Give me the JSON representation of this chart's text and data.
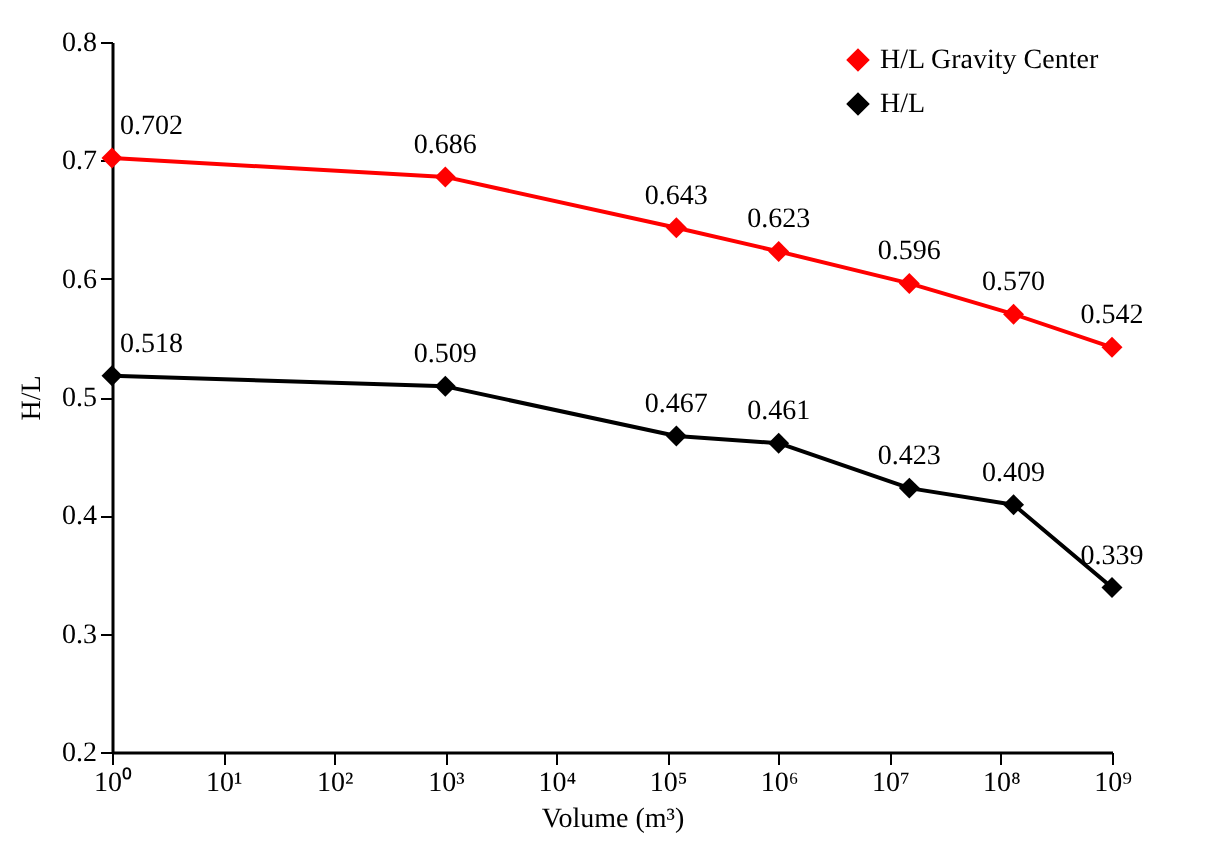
{
  "chart_data": {
    "type": "line",
    "xlabel": "Volume (m³)",
    "ylabel": "H/L",
    "log": "x",
    "x": [
      1,
      1000,
      120000,
      1000000,
      15000000,
      130000000,
      1000000000
    ],
    "xlim": [
      1,
      1000000000
    ],
    "xticks": [
      {
        "value": 1,
        "label": "10⁰"
      },
      {
        "value": 10,
        "label": "10¹"
      },
      {
        "value": 100,
        "label": "10²"
      },
      {
        "value": 1000,
        "label": "10³"
      },
      {
        "value": 10000,
        "label": "10⁴"
      },
      {
        "value": 100000,
        "label": "10⁵"
      },
      {
        "value": 1000000,
        "label": "10⁶"
      },
      {
        "value": 10000000,
        "label": "10⁷"
      },
      {
        "value": 100000000,
        "label": "10⁸"
      },
      {
        "value": 1000000000,
        "label": "10⁹"
      }
    ],
    "ylim": [
      0.2,
      0.8
    ],
    "yticks": [
      0.2,
      0.3,
      0.4,
      0.5,
      0.6,
      0.7,
      0.8
    ],
    "series": [
      {
        "name": "H/L  Gravity Center",
        "color": "#ff0000",
        "values": [
          0.702,
          0.686,
          0.643,
          0.623,
          0.596,
          0.57,
          0.542
        ],
        "value_labels": [
          "0.702",
          "0.686",
          "0.643",
          "0.623",
          "0.596",
          "0.570",
          "0.542"
        ]
      },
      {
        "name": "H/L",
        "color": "#000000",
        "values": [
          0.518,
          0.509,
          0.467,
          0.461,
          0.423,
          0.409,
          0.339
        ],
        "value_labels": [
          "0.518",
          "0.509",
          "0.467",
          "0.461",
          "0.423",
          "0.409",
          "0.339"
        ]
      }
    ],
    "marker": "diamond",
    "grid": false,
    "legend": "top right"
  }
}
